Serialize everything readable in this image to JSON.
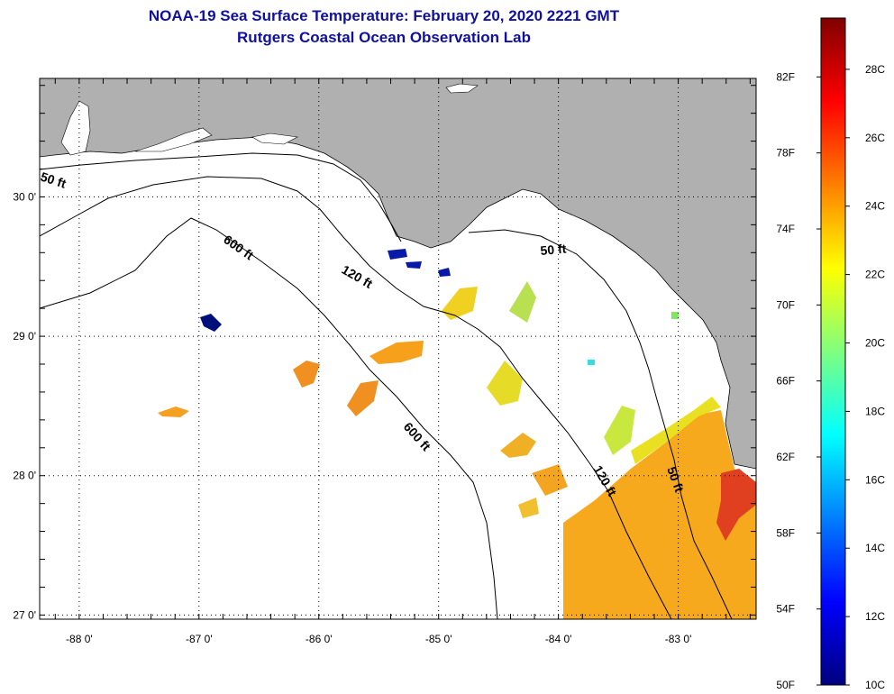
{
  "title_line1": "NOAA-19 Sea Surface Temperature:  February 20, 2020 2221 GMT",
  "title_line2": "Rutgers Coastal Ocean Observation Lab",
  "map": {
    "lat_ticks": [
      {
        "value": 30,
        "label": "30 0'"
      },
      {
        "value": 29,
        "label": "29 0'"
      },
      {
        "value": 28,
        "label": "28 0'"
      },
      {
        "value": 27,
        "label": "27 0'"
      }
    ],
    "lon_ticks": [
      {
        "value": -88,
        "label": "-88 0'"
      },
      {
        "value": -87,
        "label": "-87 0'"
      },
      {
        "value": -86,
        "label": "-86 0'"
      },
      {
        "value": -85,
        "label": "-85 0'"
      },
      {
        "value": -84,
        "label": "-84 0'"
      },
      {
        "value": -83,
        "label": "-83 0'"
      }
    ],
    "lat_range": [
      26.97,
      30.85
    ],
    "lon_range": [
      -88.33,
      -82.35
    ],
    "contour_labels": [
      "50 ft",
      "600 ft",
      "120 ft",
      "50 ft",
      "600 ft",
      "120 ft",
      "50 ft"
    ]
  },
  "colorbar": {
    "fahrenheit_labels": [
      "82F",
      "78F",
      "74F",
      "70F",
      "66F",
      "62F",
      "58F",
      "54F",
      "50F"
    ],
    "fahrenheit_values": [
      82,
      78,
      74,
      70,
      66,
      62,
      58,
      54,
      50
    ],
    "celsius_labels": [
      "28C",
      "26C",
      "24C",
      "22C",
      "20C",
      "18C",
      "16C",
      "14C",
      "12C",
      "10C"
    ],
    "celsius_values": [
      28,
      26,
      24,
      22,
      20,
      18,
      16,
      14,
      12,
      10
    ],
    "range_c": [
      10,
      29.5
    ],
    "stops": [
      "#00007f",
      "#0000ff",
      "#007fff",
      "#00ffff",
      "#7fff7f",
      "#ffff00",
      "#ff7f00",
      "#ff0000",
      "#7f0000"
    ]
  }
}
